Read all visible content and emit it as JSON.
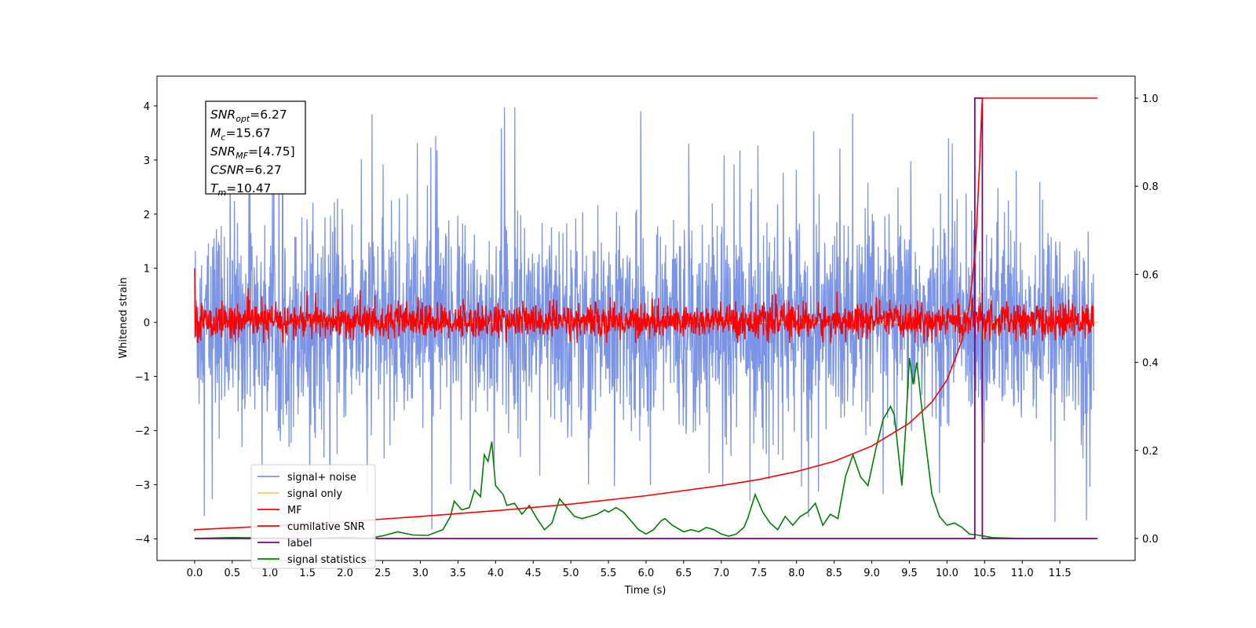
{
  "chart_data": {
    "type": "line",
    "xlabel": "Time (s)",
    "ylabel": "Whitened strain",
    "xlim": [
      -0.5,
      12.5
    ],
    "ylim": [
      -4.4,
      4.55
    ],
    "y2lim": [
      -0.05,
      1.05
    ],
    "x_ticks": [
      "0.0",
      "0.5",
      "1.0",
      "1.5",
      "2.0",
      "2.5",
      "3.0",
      "3.5",
      "4.0",
      "4.5",
      "5.0",
      "5.5",
      "6.0",
      "6.5",
      "7.0",
      "7.5",
      "8.0",
      "8.5",
      "9.0",
      "9.5",
      "10.0",
      "10.5",
      "11.0",
      "11.5"
    ],
    "y_ticks": [
      "−4",
      "−3",
      "−2",
      "−1",
      "0",
      "1",
      "2",
      "3",
      "4"
    ],
    "y2_ticks": [
      "0.0",
      "0.2",
      "0.4",
      "0.6",
      "0.8",
      "1.0"
    ],
    "grid": false,
    "legend_position": "lower-left",
    "annotation": [
      {
        "base": "SNR",
        "sub": "opt",
        "value": "=6.27"
      },
      {
        "base": "M",
        "sub": "c",
        "value": "=15.67"
      },
      {
        "base": "SNR",
        "sub": "MF",
        "value": "=[4.75]"
      },
      {
        "base": "CSNR",
        "sub": "",
        "value": "=6.27"
      },
      {
        "base": "T",
        "sub": "m",
        "value": "=10.47"
      }
    ],
    "series": [
      {
        "name": "signal+ noise",
        "axis": "left",
        "color": "#7b94e6",
        "description": "whitened noise, x 0 to 12, approx range -3.7 to 4.15",
        "envelope": {
          "typical_max": 2.6,
          "typical_min": -2.6,
          "peak_max": 4.18,
          "peak_min": -3.95
        }
      },
      {
        "name": "signal only",
        "axis": "left",
        "color": "#f5c96b",
        "points": [
          [
            0,
            0
          ],
          [
            9.8,
            0
          ],
          [
            10.0,
            0.05
          ],
          [
            10.2,
            0.12
          ],
          [
            10.3,
            0.25
          ],
          [
            10.4,
            0.4
          ],
          [
            10.45,
            0.55
          ],
          [
            10.47,
            -0.45
          ],
          [
            10.5,
            0
          ],
          [
            12,
            0
          ]
        ]
      },
      {
        "name": "MF",
        "axis": "left",
        "color": "#ff0000",
        "envelope": {
          "typical_max": 0.55,
          "typical_min": -0.35,
          "peak_max": 1.0,
          "peak_min": -0.38
        }
      },
      {
        "name": "cumilative SNR",
        "axis": "right",
        "color": "#ff0000",
        "points": [
          [
            0,
            0.017
          ],
          [
            0,
            0.02
          ],
          [
            1,
            0.028
          ],
          [
            2,
            0.038
          ],
          [
            3,
            0.05
          ],
          [
            4,
            0.063
          ],
          [
            5,
            0.078
          ],
          [
            6,
            0.097
          ],
          [
            7,
            0.12
          ],
          [
            7.5,
            0.134
          ],
          [
            8,
            0.152
          ],
          [
            8.5,
            0.175
          ],
          [
            9,
            0.21
          ],
          [
            9.5,
            0.262
          ],
          [
            9.8,
            0.31
          ],
          [
            10,
            0.36
          ],
          [
            10.2,
            0.45
          ],
          [
            10.3,
            0.53
          ],
          [
            10.38,
            0.66
          ],
          [
            10.43,
            0.84
          ],
          [
            10.46,
            0.97
          ],
          [
            10.47,
            1.0
          ],
          [
            12,
            1.0
          ]
        ]
      },
      {
        "name": "label",
        "axis": "right",
        "color": "#800080",
        "points": [
          [
            0,
            0
          ],
          [
            10.37,
            0
          ],
          [
            10.37,
            1.0
          ],
          [
            10.47,
            1.0
          ],
          [
            10.47,
            0
          ],
          [
            12,
            0
          ]
        ]
      },
      {
        "name": "signal statistics",
        "axis": "right",
        "color": "#008000",
        "points": [
          [
            0,
            0
          ],
          [
            0.5,
            0.002
          ],
          [
            1.0,
            0.001
          ],
          [
            1.5,
            0.0
          ],
          [
            2.0,
            0.003
          ],
          [
            2.3,
            0.0
          ],
          [
            2.5,
            0.006
          ],
          [
            2.7,
            0.015
          ],
          [
            2.9,
            0.008
          ],
          [
            3.1,
            0.007
          ],
          [
            3.3,
            0.02
          ],
          [
            3.4,
            0.05
          ],
          [
            3.45,
            0.085
          ],
          [
            3.55,
            0.065
          ],
          [
            3.65,
            0.07
          ],
          [
            3.72,
            0.11
          ],
          [
            3.8,
            0.095
          ],
          [
            3.85,
            0.19
          ],
          [
            3.9,
            0.175
          ],
          [
            3.95,
            0.22
          ],
          [
            4.0,
            0.12
          ],
          [
            4.1,
            0.1
          ],
          [
            4.15,
            0.075
          ],
          [
            4.25,
            0.08
          ],
          [
            4.35,
            0.055
          ],
          [
            4.45,
            0.075
          ],
          [
            4.55,
            0.045
          ],
          [
            4.65,
            0.02
          ],
          [
            4.75,
            0.035
          ],
          [
            4.85,
            0.09
          ],
          [
            4.95,
            0.07
          ],
          [
            5.05,
            0.05
          ],
          [
            5.15,
            0.045
          ],
          [
            5.25,
            0.05
          ],
          [
            5.35,
            0.055
          ],
          [
            5.45,
            0.065
          ],
          [
            5.5,
            0.06
          ],
          [
            5.6,
            0.07
          ],
          [
            5.7,
            0.06
          ],
          [
            5.8,
            0.04
          ],
          [
            5.9,
            0.02
          ],
          [
            6.0,
            0.01
          ],
          [
            6.1,
            0.02
          ],
          [
            6.2,
            0.04
          ],
          [
            6.25,
            0.045
          ],
          [
            6.35,
            0.03
          ],
          [
            6.5,
            0.015
          ],
          [
            6.6,
            0.02
          ],
          [
            6.7,
            0.015
          ],
          [
            6.8,
            0.025
          ],
          [
            6.9,
            0.02
          ],
          [
            7.0,
            0.01
          ],
          [
            7.1,
            0.005
          ],
          [
            7.2,
            0.01
          ],
          [
            7.3,
            0.025
          ],
          [
            7.35,
            0.045
          ],
          [
            7.45,
            0.1
          ],
          [
            7.55,
            0.06
          ],
          [
            7.65,
            0.035
          ],
          [
            7.75,
            0.02
          ],
          [
            7.85,
            0.05
          ],
          [
            7.95,
            0.03
          ],
          [
            8.05,
            0.05
          ],
          [
            8.15,
            0.06
          ],
          [
            8.25,
            0.08
          ],
          [
            8.35,
            0.03
          ],
          [
            8.45,
            0.055
          ],
          [
            8.55,
            0.045
          ],
          [
            8.65,
            0.14
          ],
          [
            8.75,
            0.19
          ],
          [
            8.85,
            0.14
          ],
          [
            8.95,
            0.12
          ],
          [
            9.05,
            0.2
          ],
          [
            9.15,
            0.27
          ],
          [
            9.25,
            0.3
          ],
          [
            9.3,
            0.28
          ],
          [
            9.4,
            0.12
          ],
          [
            9.45,
            0.25
          ],
          [
            9.5,
            0.41
          ],
          [
            9.55,
            0.35
          ],
          [
            9.6,
            0.4
          ],
          [
            9.7,
            0.24
          ],
          [
            9.8,
            0.1
          ],
          [
            9.9,
            0.05
          ],
          [
            10.0,
            0.03
          ],
          [
            10.1,
            0.035
          ],
          [
            10.2,
            0.025
          ],
          [
            10.3,
            0.01
          ],
          [
            10.4,
            0.008
          ],
          [
            10.5,
            0.005
          ],
          [
            10.6,
            0.002
          ],
          [
            11.0,
            0.0
          ],
          [
            11.95,
            0.0
          ]
        ]
      }
    ]
  }
}
